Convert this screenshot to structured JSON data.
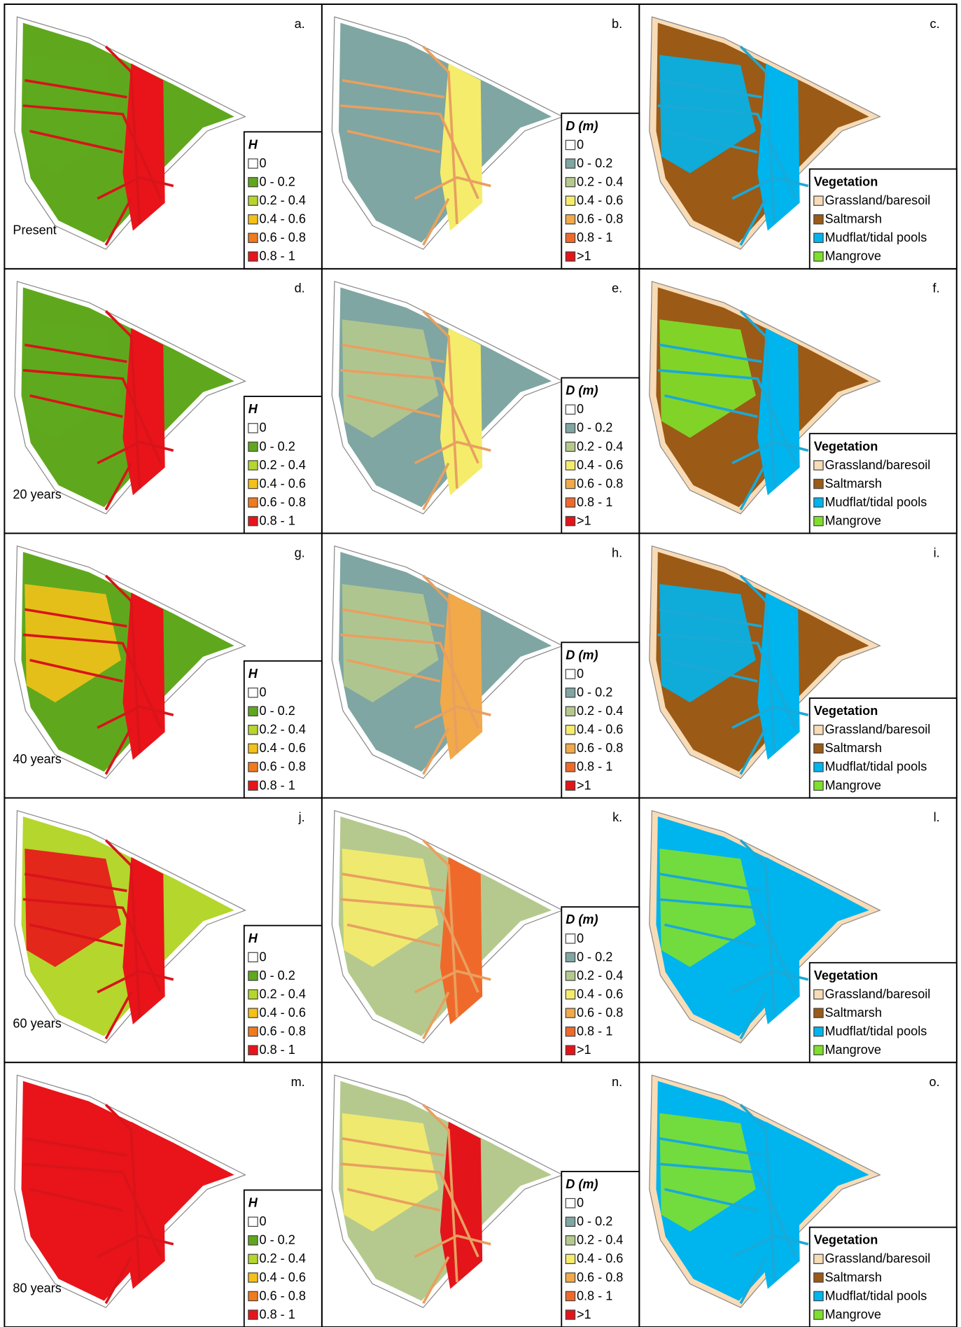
{
  "rows": [
    {
      "time": "Present",
      "panels": [
        {
          "letter": "a.",
          "legend": {
            "title": "H",
            "items": [
              {
                "label": "0",
                "color": "#ffffff"
              },
              {
                "label": "0 - 0.2",
                "color": "#5fa81e"
              },
              {
                "label": "0.2 - 0.4",
                "color": "#b5d62c"
              },
              {
                "label": "0.4 - 0.6",
                "color": "#f3c118"
              },
              {
                "label": "0.6 - 0.8",
                "color": "#f07a1e"
              },
              {
                "label": "0.8 - 1",
                "color": "#e8141a"
              }
            ]
          }
        },
        {
          "letter": "b.",
          "legend": {
            "title": "D (m)",
            "items": [
              {
                "label": "0",
                "color": "#ffffff"
              },
              {
                "label": "0 - 0.2",
                "color": "#7fa6a2"
              },
              {
                "label": "0.2 - 0.4",
                "color": "#b5c98e"
              },
              {
                "label": "0.4 - 0.6",
                "color": "#f5ec6c"
              },
              {
                "label": "0.6 - 0.8",
                "color": "#f2a94a"
              },
              {
                "label": "0.8 - 1",
                "color": "#ef6a2a"
              },
              {
                "label": ">1",
                "color": "#e3141a"
              }
            ]
          }
        },
        {
          "letter": "c.",
          "legend": {
            "title": "Vegetation",
            "items": [
              {
                "label": "Grassland/baresoil",
                "color": "#f8dcb8"
              },
              {
                "label": "Saltmarsh",
                "color": "#9b5a16"
              },
              {
                "label": "Mudflat/tidal pools",
                "color": "#00b4ee"
              },
              {
                "label": "Mangrove",
                "color": "#7ee02a"
              }
            ]
          }
        }
      ]
    },
    {
      "time": "20 years",
      "panels": [
        {
          "letter": "d.",
          "legend": {
            "title": "H",
            "items": [
              {
                "label": "0",
                "color": "#ffffff"
              },
              {
                "label": "0 - 0.2",
                "color": "#5fa81e"
              },
              {
                "label": "0.2 - 0.4",
                "color": "#b5d62c"
              },
              {
                "label": "0.4 - 0.6",
                "color": "#f3c118"
              },
              {
                "label": "0.6 - 0.8",
                "color": "#f07a1e"
              },
              {
                "label": "0.8 - 1",
                "color": "#e8141a"
              }
            ]
          }
        },
        {
          "letter": "e.",
          "legend": {
            "title": "D (m)",
            "items": [
              {
                "label": "0",
                "color": "#ffffff"
              },
              {
                "label": "0 - 0.2",
                "color": "#7fa6a2"
              },
              {
                "label": "0.2 - 0.4",
                "color": "#b5c98e"
              },
              {
                "label": "0.4 - 0.6",
                "color": "#f5ec6c"
              },
              {
                "label": "0.6 - 0.8",
                "color": "#f2a94a"
              },
              {
                "label": "0.8 - 1",
                "color": "#ef6a2a"
              },
              {
                "label": ">1",
                "color": "#e3141a"
              }
            ]
          }
        },
        {
          "letter": "f.",
          "legend": {
            "title": "Vegetation",
            "items": [
              {
                "label": "Grassland/baresoil",
                "color": "#f8dcb8"
              },
              {
                "label": "Saltmarsh",
                "color": "#9b5a16"
              },
              {
                "label": "Mudflat/tidal pools",
                "color": "#00b4ee"
              },
              {
                "label": "Mangrove",
                "color": "#7ee02a"
              }
            ]
          }
        }
      ]
    },
    {
      "time": "40 years",
      "panels": [
        {
          "letter": "g.",
          "legend": {
            "title": "H",
            "items": [
              {
                "label": "0",
                "color": "#ffffff"
              },
              {
                "label": "0 - 0.2",
                "color": "#5fa81e"
              },
              {
                "label": "0.2 - 0.4",
                "color": "#b5d62c"
              },
              {
                "label": "0.4 - 0.6",
                "color": "#f3c118"
              },
              {
                "label": "0.6 - 0.8",
                "color": "#f07a1e"
              },
              {
                "label": "0.8 - 1",
                "color": "#e8141a"
              }
            ]
          }
        },
        {
          "letter": "h.",
          "legend": {
            "title": "D (m)",
            "items": [
              {
                "label": "0",
                "color": "#ffffff"
              },
              {
                "label": "0 - 0.2",
                "color": "#7fa6a2"
              },
              {
                "label": "0.2 - 0.4",
                "color": "#b5c98e"
              },
              {
                "label": "0.4 - 0.6",
                "color": "#f5ec6c"
              },
              {
                "label": "0.6 - 0.8",
                "color": "#f2a94a"
              },
              {
                "label": "0.8 - 1",
                "color": "#ef6a2a"
              },
              {
                "label": ">1",
                "color": "#e3141a"
              }
            ]
          }
        },
        {
          "letter": "i.",
          "legend": {
            "title": "Vegetation",
            "items": [
              {
                "label": "Grassland/baresoil",
                "color": "#f8dcb8"
              },
              {
                "label": "Saltmarsh",
                "color": "#9b5a16"
              },
              {
                "label": "Mudflat/tidal pools",
                "color": "#00b4ee"
              },
              {
                "label": "Mangrove",
                "color": "#7ee02a"
              }
            ]
          }
        }
      ]
    },
    {
      "time": "60 years",
      "panels": [
        {
          "letter": "j.",
          "legend": {
            "title": "H",
            "items": [
              {
                "label": "0",
                "color": "#ffffff"
              },
              {
                "label": "0 - 0.2",
                "color": "#5fa81e"
              },
              {
                "label": "0.2 - 0.4",
                "color": "#b5d62c"
              },
              {
                "label": "0.4 - 0.6",
                "color": "#f3c118"
              },
              {
                "label": "0.6 - 0.8",
                "color": "#f07a1e"
              },
              {
                "label": "0.8 - 1",
                "color": "#e8141a"
              }
            ]
          }
        },
        {
          "letter": "k.",
          "legend": {
            "title": "D (m)",
            "items": [
              {
                "label": "0",
                "color": "#ffffff"
              },
              {
                "label": "0 - 0.2",
                "color": "#7fa6a2"
              },
              {
                "label": "0.2 - 0.4",
                "color": "#b5c98e"
              },
              {
                "label": "0.4 - 0.6",
                "color": "#f5ec6c"
              },
              {
                "label": "0.6 - 0.8",
                "color": "#f2a94a"
              },
              {
                "label": "0.8 - 1",
                "color": "#ef6a2a"
              },
              {
                "label": ">1",
                "color": "#e3141a"
              }
            ]
          }
        },
        {
          "letter": "l.",
          "legend": {
            "title": "Vegetation",
            "items": [
              {
                "label": "Grassland/baresoil",
                "color": "#f8dcb8"
              },
              {
                "label": "Saltmarsh",
                "color": "#9b5a16"
              },
              {
                "label": "Mudflat/tidal pools",
                "color": "#00b4ee"
              },
              {
                "label": "Mangrove",
                "color": "#7ee02a"
              }
            ]
          }
        }
      ]
    },
    {
      "time": "80 years",
      "panels": [
        {
          "letter": "m.",
          "legend": {
            "title": "H",
            "items": [
              {
                "label": "0",
                "color": "#ffffff"
              },
              {
                "label": "0 - 0.2",
                "color": "#5fa81e"
              },
              {
                "label": "0.2 - 0.4",
                "color": "#b5d62c"
              },
              {
                "label": "0.4 - 0.6",
                "color": "#f3c118"
              },
              {
                "label": "0.6 - 0.8",
                "color": "#f07a1e"
              },
              {
                "label": "0.8 - 1",
                "color": "#e8141a"
              }
            ]
          }
        },
        {
          "letter": "n.",
          "legend": {
            "title": "D (m)",
            "items": [
              {
                "label": "0",
                "color": "#ffffff"
              },
              {
                "label": "0 - 0.2",
                "color": "#7fa6a2"
              },
              {
                "label": "0.2 - 0.4",
                "color": "#b5c98e"
              },
              {
                "label": "0.4 - 0.6",
                "color": "#f5ec6c"
              },
              {
                "label": "0.6 - 0.8",
                "color": "#f2a94a"
              },
              {
                "label": "0.8 - 1",
                "color": "#ef6a2a"
              },
              {
                "label": ">1",
                "color": "#e3141a"
              }
            ]
          }
        },
        {
          "letter": "o.",
          "legend": {
            "title": "Vegetation",
            "items": [
              {
                "label": "Grassland/baresoil",
                "color": "#f8dcb8"
              },
              {
                "label": "Saltmarsh",
                "color": "#9b5a16"
              },
              {
                "label": "Mudflat/tidal pools",
                "color": "#00b4ee"
              },
              {
                "label": "Mangrove",
                "color": "#7ee02a"
              }
            ]
          }
        }
      ]
    }
  ]
}
